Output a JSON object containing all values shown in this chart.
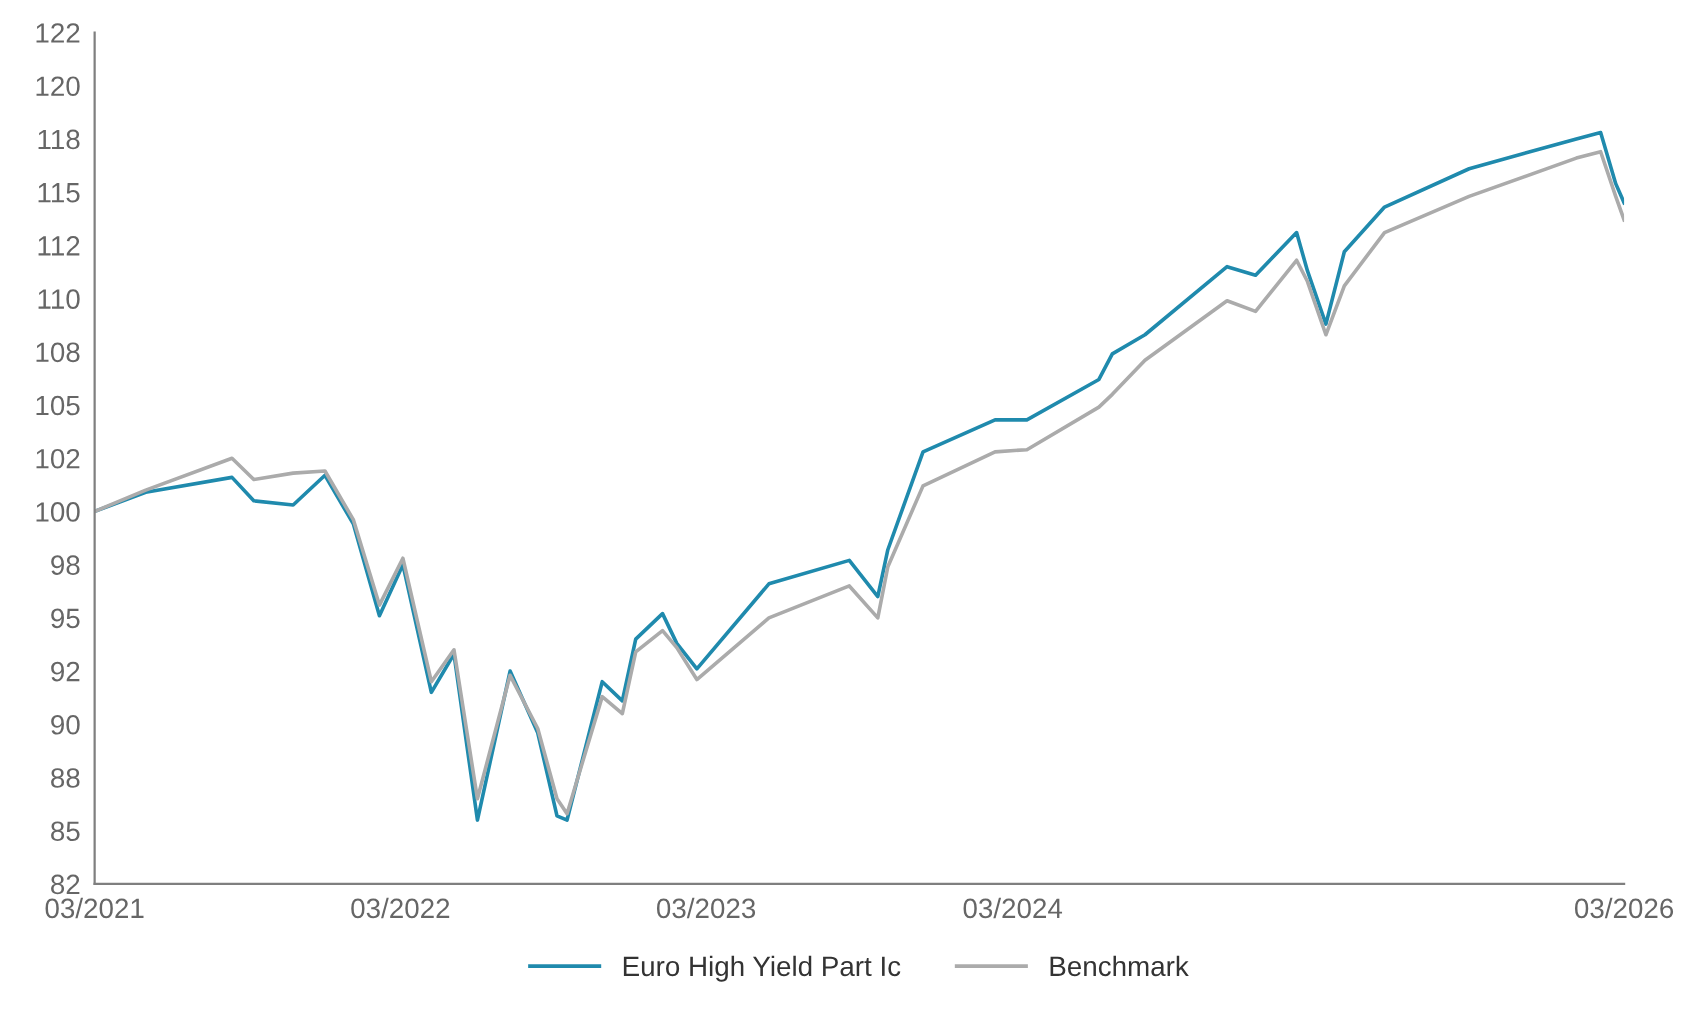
{
  "chart_data": {
    "type": "line",
    "x": [
      "2021-03-01",
      "2021-05-01",
      "2021-08-12",
      "2021-09-07",
      "2021-10-24",
      "2021-12-01",
      "2022-01-04",
      "2022-02-04",
      "2022-03-04",
      "2022-04-07",
      "2022-05-04",
      "2022-06-01",
      "2022-07-10",
      "2022-08-12",
      "2022-09-04",
      "2022-09-16",
      "2022-10-28",
      "2022-11-21",
      "2022-12-07",
      "2023-01-08",
      "2023-01-25",
      "2023-02-18",
      "2023-05-15",
      "2023-08-19",
      "2023-09-22",
      "2023-10-04",
      "2023-11-15",
      "2024-02-09",
      "2024-03-18",
      "2024-06-12",
      "2024-06-28",
      "2024-08-06",
      "2024-11-12",
      "2024-12-16",
      "2025-02-03",
      "2025-02-16",
      "2025-03-10",
      "2025-04-01",
      "2025-05-19",
      "2025-08-28",
      "2026-01-03",
      "2026-02-01",
      "2026-02-19",
      "2026-03-01"
    ],
    "series": [
      {
        "name": "Euro High Yield Part Ic",
        "color": "#1f8aad",
        "values": [
          100.0,
          100.9,
          101.6,
          100.5,
          100.3,
          101.7,
          99.4,
          95.1,
          97.5,
          91.5,
          93.3,
          85.5,
          92.5,
          89.6,
          85.7,
          85.5,
          92.0,
          91.1,
          94.0,
          95.2,
          93.8,
          92.6,
          96.6,
          97.7,
          96.0,
          98.2,
          102.8,
          104.3,
          104.3,
          106.2,
          107.4,
          108.3,
          111.5,
          111.1,
          113.1,
          111.3,
          108.8,
          112.2,
          114.3,
          116.1,
          117.5,
          117.8,
          115.4,
          114.5
        ]
      },
      {
        "name": "Benchmark",
        "color": "#ababab",
        "values": [
          100.0,
          101.0,
          102.5,
          101.5,
          101.8,
          101.9,
          99.6,
          95.6,
          97.8,
          92.0,
          93.5,
          86.5,
          92.3,
          89.8,
          86.5,
          85.8,
          91.3,
          90.5,
          93.4,
          94.4,
          93.6,
          92.1,
          95.0,
          96.5,
          95.0,
          97.4,
          101.2,
          102.8,
          102.9,
          104.9,
          105.5,
          107.1,
          109.9,
          109.4,
          111.8,
          110.8,
          108.3,
          110.6,
          113.1,
          114.8,
          116.6,
          116.9,
          114.8,
          113.7
        ]
      }
    ],
    "xlim": [
      "2021-03-01",
      "2026-03-01"
    ],
    "xticks": [
      {
        "value": "2021-03-01",
        "label": "03/2021"
      },
      {
        "value": "2022-03-01",
        "label": "03/2022"
      },
      {
        "value": "2023-03-01",
        "label": "03/2023"
      },
      {
        "value": "2024-03-01",
        "label": "03/2024"
      },
      {
        "value": "2026-03-01",
        "label": "03/2026"
      }
    ],
    "ylim": [
      82.5,
      122.5
    ],
    "yticks": [
      {
        "value": 82.5,
        "label": "82"
      },
      {
        "value": 85,
        "label": "85"
      },
      {
        "value": 87.5,
        "label": "88"
      },
      {
        "value": 90,
        "label": "90"
      },
      {
        "value": 92.5,
        "label": "92"
      },
      {
        "value": 95,
        "label": "95"
      },
      {
        "value": 97.5,
        "label": "98"
      },
      {
        "value": 100,
        "label": "100"
      },
      {
        "value": 102.5,
        "label": "102"
      },
      {
        "value": 105,
        "label": "105"
      },
      {
        "value": 107.5,
        "label": "108"
      },
      {
        "value": 110,
        "label": "110"
      },
      {
        "value": 112.5,
        "label": "112"
      },
      {
        "value": 115,
        "label": "115"
      },
      {
        "value": 117.5,
        "label": "118"
      },
      {
        "value": 120,
        "label": "120"
      },
      {
        "value": 122.5,
        "label": "122"
      }
    ],
    "grid": false,
    "legend": "bottom",
    "line_style": "solid",
    "marker": "none"
  }
}
